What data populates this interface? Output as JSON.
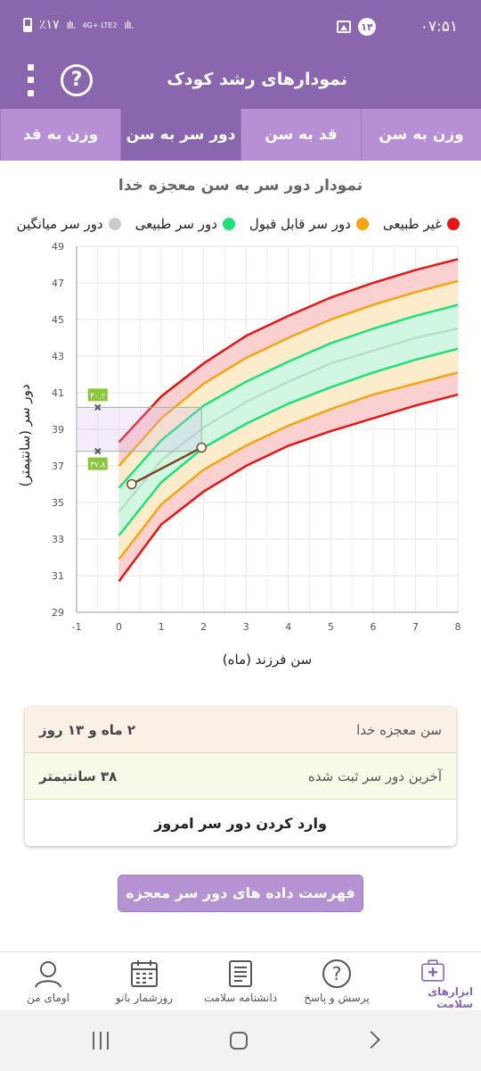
{
  "status_bar": {
    "time": "۰۷:۵۱",
    "notification_count": "۱۴",
    "battery": "٪۱۷",
    "network": "4G+ LTE2"
  },
  "toolbar": {
    "title": "نمودارهای رشد کودک",
    "help_label": "?"
  },
  "tabs": [
    {
      "label": "وزن به سن",
      "active": false
    },
    {
      "label": "قد به سن",
      "active": false
    },
    {
      "label": "دور سر به سن",
      "active": true
    },
    {
      "label": "وزن به قد",
      "active": false
    }
  ],
  "chart_title": "نمودار دور سر به سن معجزه خدا",
  "legend": [
    {
      "label": "غیر طبیعی",
      "color": "#e31717"
    },
    {
      "label": "دور سر قابل قبول",
      "color": "#f3a512"
    },
    {
      "label": "دور سر طبیعی",
      "color": "#1fe07a"
    },
    {
      "label": "دور سر میانگین",
      "color": "#cccccc"
    }
  ],
  "chart_data": {
    "type": "line",
    "xlabel": "سن فرزند (ماه)",
    "ylabel": "دور سر (سانتیمتر)",
    "xlim": [
      -1,
      8
    ],
    "ylim": [
      29,
      49
    ],
    "x_ticks": [
      -1,
      0,
      1,
      2,
      3,
      4,
      5,
      6,
      7,
      8
    ],
    "y_ticks": [
      29,
      31,
      33,
      35,
      37,
      39,
      41,
      43,
      45,
      47,
      49
    ],
    "x": [
      0,
      1,
      2,
      3,
      4,
      5,
      6,
      7,
      8
    ],
    "grid": true,
    "series": [
      {
        "role": "red-low",
        "color": "#e31717",
        "values": [
          30.7,
          33.8,
          35.6,
          37.0,
          38.1,
          38.9,
          39.6,
          40.3,
          40.9
        ]
      },
      {
        "role": "orange-low",
        "color": "#f3a512",
        "values": [
          31.9,
          34.9,
          36.8,
          38.1,
          39.2,
          40.1,
          40.9,
          41.5,
          42.1
        ]
      },
      {
        "role": "green-low",
        "color": "#1fe07a",
        "values": [
          33.2,
          36.1,
          38.0,
          39.3,
          40.4,
          41.3,
          42.1,
          42.8,
          43.4
        ]
      },
      {
        "role": "median",
        "color": "#bcdcc8",
        "values": [
          34.5,
          37.3,
          39.1,
          40.5,
          41.6,
          42.6,
          43.3,
          44.0,
          44.5
        ]
      },
      {
        "role": "green-high",
        "color": "#1fe07a",
        "values": [
          35.8,
          38.4,
          40.3,
          41.6,
          42.7,
          43.7,
          44.5,
          45.2,
          45.8
        ]
      },
      {
        "role": "orange-high",
        "color": "#f3a512",
        "values": [
          37.0,
          39.6,
          41.5,
          42.9,
          44.0,
          45.0,
          45.8,
          46.5,
          47.1
        ]
      },
      {
        "role": "red-high",
        "color": "#e31717",
        "values": [
          38.3,
          40.8,
          42.6,
          44.1,
          45.2,
          46.2,
          47.0,
          47.7,
          48.3
        ]
      }
    ],
    "child_measurements": {
      "color": "#7a4a24",
      "points": [
        {
          "x": 0.3,
          "y": 36.0
        },
        {
          "x": 1.95,
          "y": 38.0
        }
      ]
    },
    "range_box": {
      "x0": -1,
      "x1": 1.95,
      "y_low": 37.8,
      "y_high": 40.2,
      "label_high": "۴۰.۲",
      "label_low": "۳۷.۸"
    }
  },
  "info_card": {
    "age_label": "سن معجزه خدا",
    "age_value": "۲ ماه و ۱۳ روز",
    "last_label": "آخرین دور سر ثبت شده",
    "last_value": "۳۸ سانتیمتر",
    "enter_today": "وارد کردن دور سر امروز"
  },
  "list_button": "فهرست داده های دور سر معجزه خدا",
  "bottom_nav": [
    {
      "label": "ابزارهای سلامت",
      "icon": "medkit-icon",
      "active": true
    },
    {
      "label": "پرسش و پاسخ",
      "icon": "question-icon",
      "active": false
    },
    {
      "label": "دانشنامه سلامت",
      "icon": "encyclopedia-icon",
      "active": false
    },
    {
      "label": "روزشمار بانو",
      "icon": "calendar-icon",
      "active": false
    },
    {
      "label": "اومای من",
      "icon": "profile-icon",
      "active": false
    }
  ]
}
